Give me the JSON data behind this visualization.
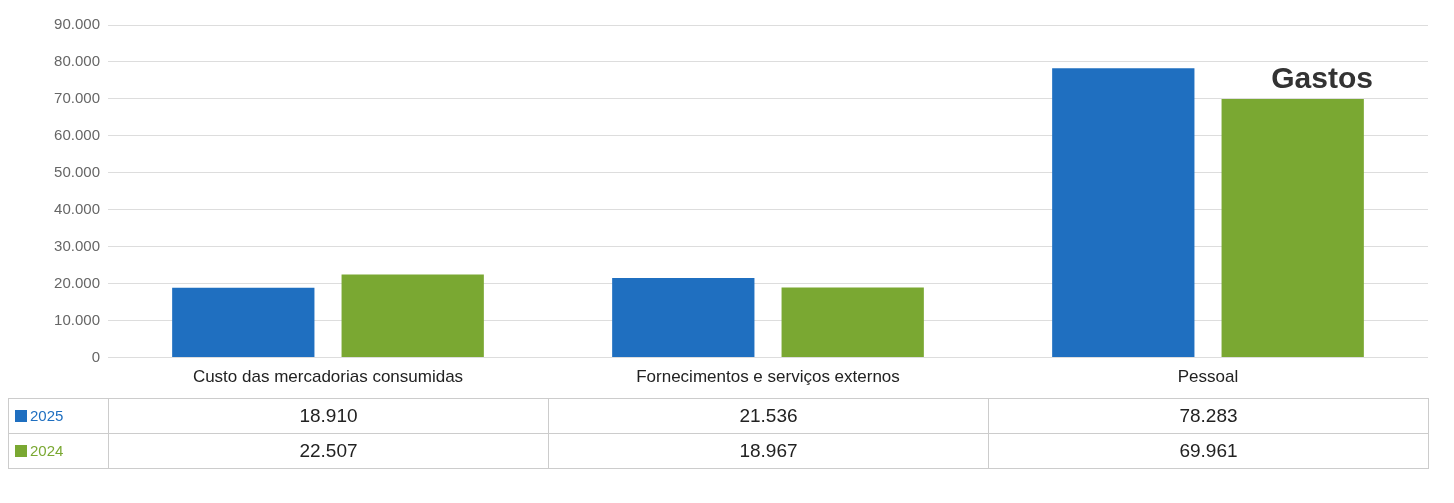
{
  "chart_data": {
    "type": "bar",
    "title": "Gastos",
    "categories": [
      "Custo das mercadorias consumidas",
      "Fornecimentos e serviços externos",
      "Pessoal"
    ],
    "series": [
      {
        "name": "2025",
        "color": "#1f6fc0",
        "values": [
          18910,
          21536,
          78283
        ],
        "value_labels": [
          "18.910",
          "21.536",
          "78.283"
        ]
      },
      {
        "name": "2024",
        "color": "#7aa832",
        "values": [
          22507,
          18967,
          69961
        ],
        "value_labels": [
          "22.507",
          "18.967",
          "69.961"
        ]
      }
    ],
    "ylim": [
      0,
      90000
    ],
    "yticks": [
      {
        "value": 0,
        "label": "0"
      },
      {
        "value": 10000,
        "label": "10.000"
      },
      {
        "value": 20000,
        "label": "20.000"
      },
      {
        "value": 30000,
        "label": "30.000"
      },
      {
        "value": 40000,
        "label": "40.000"
      },
      {
        "value": 50000,
        "label": "50.000"
      },
      {
        "value": 60000,
        "label": "60.000"
      },
      {
        "value": 70000,
        "label": "70.000"
      },
      {
        "value": 80000,
        "label": "80.000"
      },
      {
        "value": 90000,
        "label": "90.000"
      }
    ],
    "grid": "y",
    "legend": "bottom"
  }
}
